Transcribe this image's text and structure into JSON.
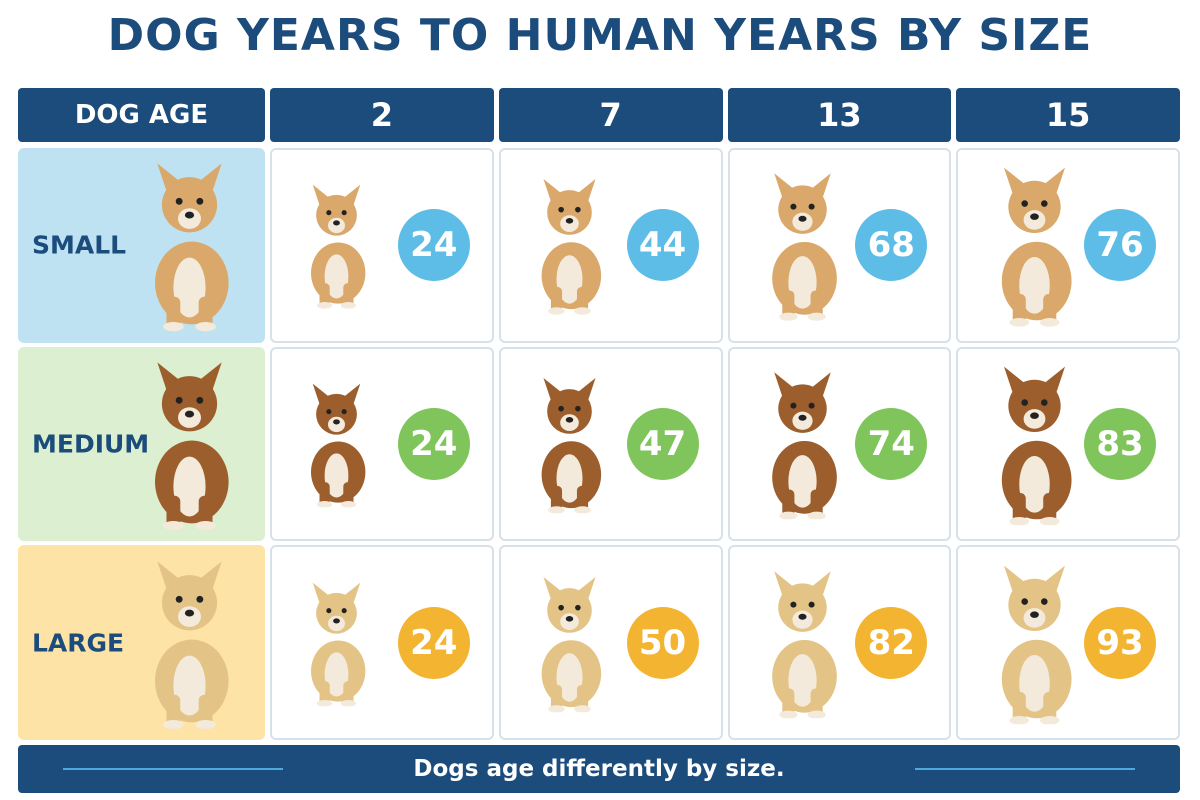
{
  "title": "DOG YEARS TO HUMAN YEARS BY SIZE",
  "table": {
    "header": [
      "DOG AGE",
      "2",
      "7",
      "13",
      "15"
    ],
    "rows": [
      {
        "label": "SMALL",
        "label_bg": "#bfe2f3",
        "badge_color": "#5dbde6",
        "dog_color": "#d9a86a",
        "values": [
          24,
          44,
          68,
          76
        ]
      },
      {
        "label": "MEDIUM",
        "label_bg": "#dcefd0",
        "badge_color": "#80c45c",
        "dog_color": "#9c5e2c",
        "values": [
          24,
          47,
          74,
          83
        ]
      },
      {
        "label": "LARGE",
        "label_bg": "#fde3a6",
        "badge_color": "#f3b431",
        "dog_color": "#e4c486",
        "values": [
          24,
          50,
          82,
          93
        ]
      }
    ]
  },
  "footer": "Dogs age differently by size."
}
